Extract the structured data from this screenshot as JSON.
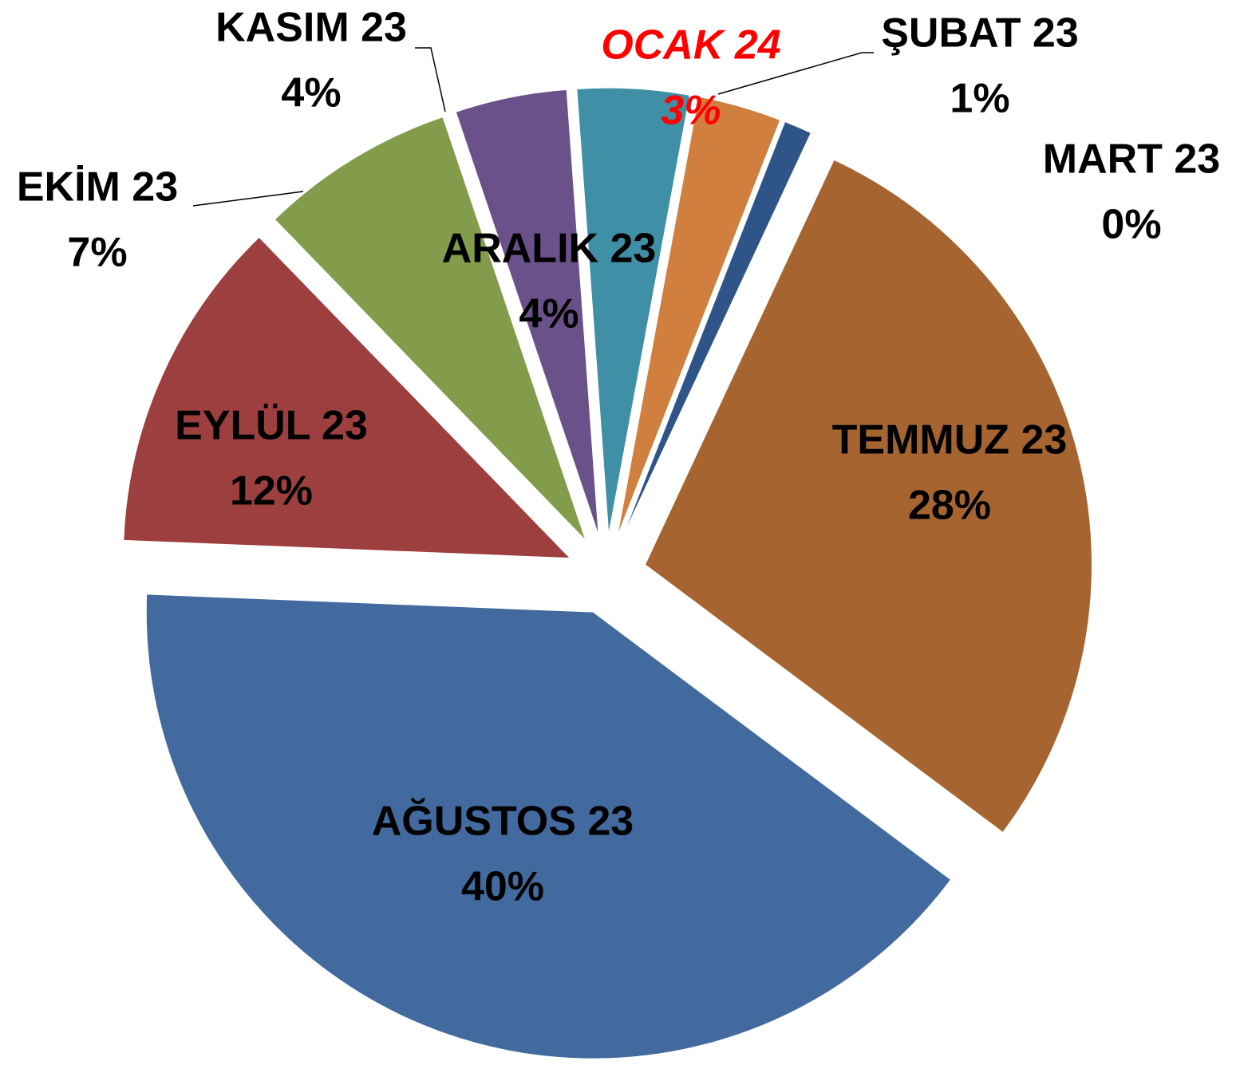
{
  "chart_data": {
    "type": "pie",
    "categories": [
      "TEMMUZ 23",
      "AĞUSTOS 23",
      "EYLÜL 23",
      "EKİM 23",
      "KASIM 23",
      "ARALIK 23",
      "OCAK 24",
      "ŞUBAT 23",
      "MART 23"
    ],
    "values": [
      28,
      40,
      12,
      7,
      4,
      4,
      3,
      1,
      0
    ],
    "value_labels": [
      "28%",
      "40%",
      "12%",
      "7%",
      "4%",
      "4%",
      "3%",
      "1%",
      "0%"
    ],
    "colors": [
      "#a66530",
      "#426a9e",
      "#9e3f3f",
      "#829c4b",
      "#6b5189",
      "#3f8fa6",
      "#d07f3e",
      "#2f5588",
      "#8b3a3a"
    ]
  }
}
